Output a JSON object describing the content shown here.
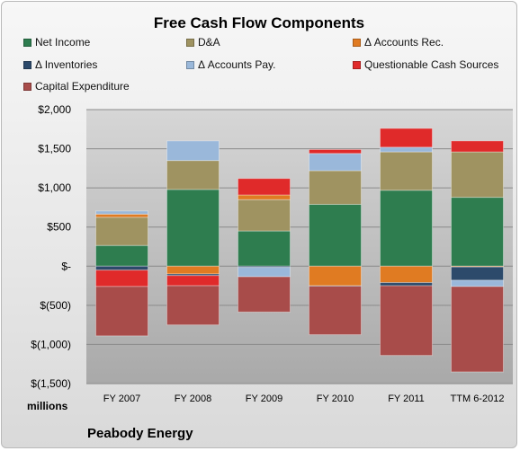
{
  "chart_data": {
    "type": "bar",
    "stacked": true,
    "title": "Free Cash Flow Components",
    "unit_label": "millions",
    "categories": [
      "FY 2007",
      "FY 2008",
      "FY 2009",
      "FY 2010",
      "FY 2011",
      "TTM 6-2012"
    ],
    "ylim": [
      -1500,
      2000
    ],
    "yticks": [
      -1500,
      -1000,
      -500,
      0,
      500,
      1000,
      1500,
      2000
    ],
    "ytick_labels": [
      "$(1,500)",
      "$(1,000)",
      "$(500)",
      "$-",
      "$500",
      "$1,000",
      "$1,500",
      "$2,000"
    ],
    "grid": true,
    "legend_position": "top",
    "series": [
      {
        "name": "Net Income",
        "color": "#2e7d4f",
        "values": [
          265,
          980,
          450,
          790,
          970,
          880
        ]
      },
      {
        "name": "D&A",
        "color": "#9f9361",
        "values": [
          360,
          370,
          400,
          430,
          490,
          580
        ]
      },
      {
        "name": "Δ Accounts Rec.",
        "color": "#e07b22",
        "values": [
          40,
          -100,
          60,
          -250,
          -210,
          -10
        ]
      },
      {
        "name": "Δ Inventories",
        "color": "#2c4a6b",
        "values": [
          -50,
          -20,
          -15,
          -5,
          -40,
          -170
        ]
      },
      {
        "name": "Δ Accounts Pay.",
        "color": "#9ab8da",
        "values": [
          40,
          250,
          -120,
          220,
          60,
          -80
        ]
      },
      {
        "name": "Questionable Cash Sources",
        "color": "#e02a2a",
        "values": [
          -210,
          -130,
          210,
          50,
          240,
          140
        ]
      },
      {
        "name": "Capital Expenditure",
        "color": "#a84c4a",
        "values": [
          -630,
          -500,
          -450,
          -620,
          -890,
          -1090
        ]
      }
    ]
  },
  "footer": "Peabody Energy"
}
